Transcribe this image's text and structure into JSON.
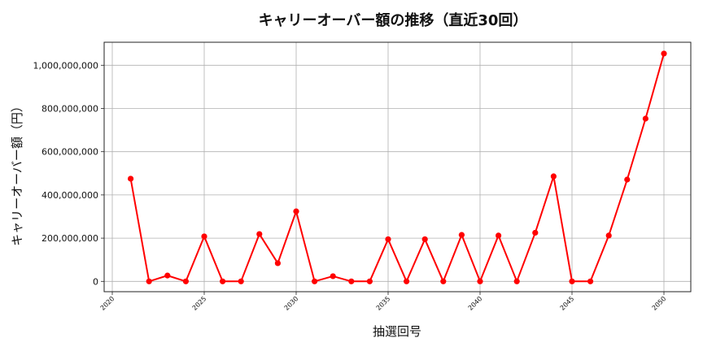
{
  "chart_data": {
    "type": "line",
    "title": "キャリーオーバー額の推移（直近30回）",
    "xlabel": "抽選回号",
    "ylabel": "キャリーオーバー額（円）",
    "x": [
      2021,
      2022,
      2023,
      2024,
      2025,
      2026,
      2027,
      2028,
      2029,
      2030,
      2031,
      2032,
      2033,
      2034,
      2035,
      2036,
      2037,
      2038,
      2039,
      2040,
      2041,
      2042,
      2043,
      2044,
      2045,
      2046,
      2047,
      2048,
      2049,
      2050
    ],
    "series": [
      {
        "name": "キャリーオーバー額",
        "color": "#ff0000",
        "marker": "circle",
        "values": [
          475000000,
          0,
          27000000,
          0,
          208000000,
          0,
          0,
          219000000,
          84000000,
          324000000,
          0,
          24000000,
          0,
          0,
          195000000,
          0,
          195000000,
          0,
          215000000,
          0,
          212000000,
          0,
          225000000,
          486000000,
          0,
          0,
          212000000,
          471000000,
          753000000,
          1054000000
        ]
      }
    ],
    "xticks": [
      "2020",
      "2025",
      "2030",
      "2035",
      "2040",
      "2045",
      "2050"
    ],
    "xtick_values": [
      2020,
      2025,
      2030,
      2035,
      2040,
      2045,
      2050
    ],
    "yticks": [
      "0",
      "200,000,000",
      "400,000,000",
      "600,000,000",
      "800,000,000",
      "1,000,000,000"
    ],
    "ytick_values": [
      0,
      200000000,
      400000000,
      600000000,
      800000000,
      1000000000
    ],
    "xlim": [
      2019.6,
      2051.5
    ],
    "ylim": [
      -50000000,
      1110000000
    ],
    "grid": true,
    "legend": null
  }
}
